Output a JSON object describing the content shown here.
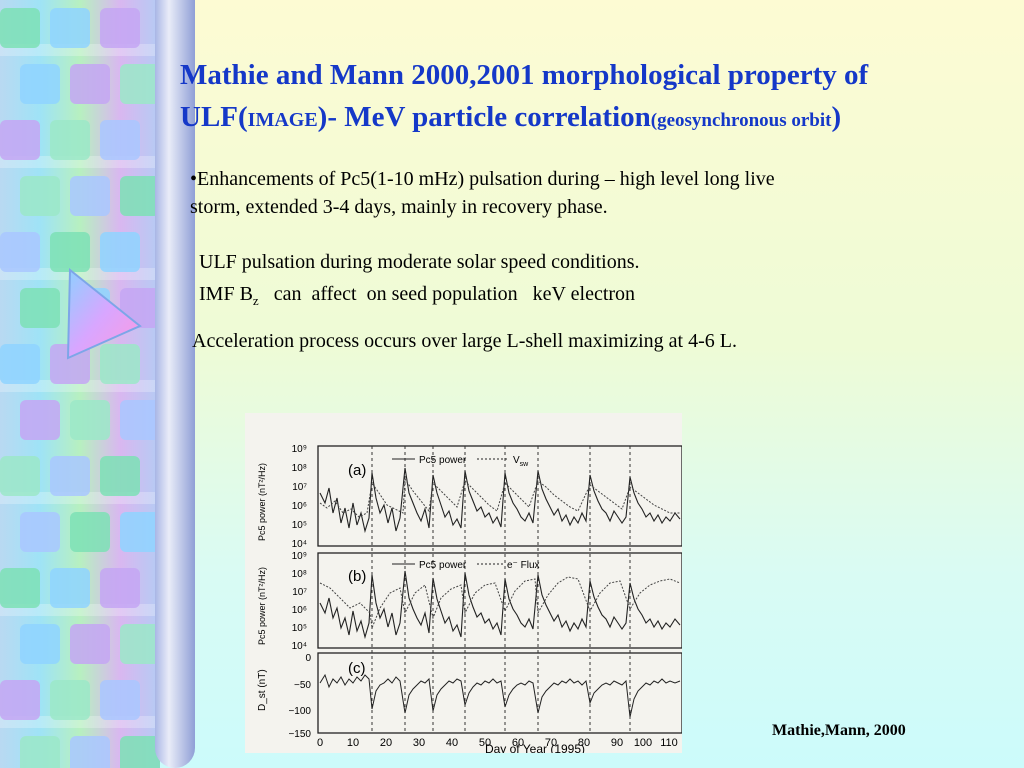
{
  "title": {
    "line1": "Mathie and Mann 2000,2001  morphological property of",
    "ulf": "ULF(",
    "image": "IMAGE",
    "mid": ")- MeV particle correlation",
    "orbit": "(geosynchronous orbit",
    "close": ")"
  },
  "bullets": {
    "b1_line1": "•Enhancements of Pc5(1-10 mHz)  pulsation during – high level long live",
    "b1_line2": "storm, extended 3-4 days, mainly in recovery phase.",
    "b2": " ULF pulsation during moderate solar speed conditions.",
    "b3_pre": " IMF B",
    "b3_sub": "z",
    "b3_post": "   can  affect  on seed population   keV electron",
    "b4": "Acceleration process occurs over large L-shell  maximizing  at 4-6 L."
  },
  "figure": {
    "panel_a": {
      "label": "(a)",
      "legend": [
        "Pc5 power",
        "V"
      ],
      "legend_sub": "sw",
      "ylabel": "Pc5 power (nT²/Hz)",
      "yticks": [
        "10⁹",
        "10⁸",
        "10⁷",
        "10⁶",
        "10⁵",
        "10⁴"
      ]
    },
    "panel_b": {
      "label": "(b)",
      "legend": [
        "Pc5 power",
        "e⁻ Flux"
      ],
      "ylabel": "Pc5 power (nT²/Hz)",
      "yticks": [
        "10⁹",
        "10⁸",
        "10⁷",
        "10⁶",
        "10⁵",
        "10⁴"
      ]
    },
    "panel_c": {
      "label": "(c)",
      "ylabel": "D_st (nT)",
      "yticks": [
        "0",
        "−50",
        "−100",
        "−150"
      ]
    },
    "xticks": [
      "0",
      "10",
      "20",
      "30",
      "40",
      "50",
      "60",
      "70",
      "80",
      "90",
      "100",
      "110"
    ],
    "xlabel": "Day of Year (1995)"
  },
  "credit": "Mathie,Mann, 2000",
  "colors": {
    "title": "#1538c8",
    "text": "#000000"
  }
}
